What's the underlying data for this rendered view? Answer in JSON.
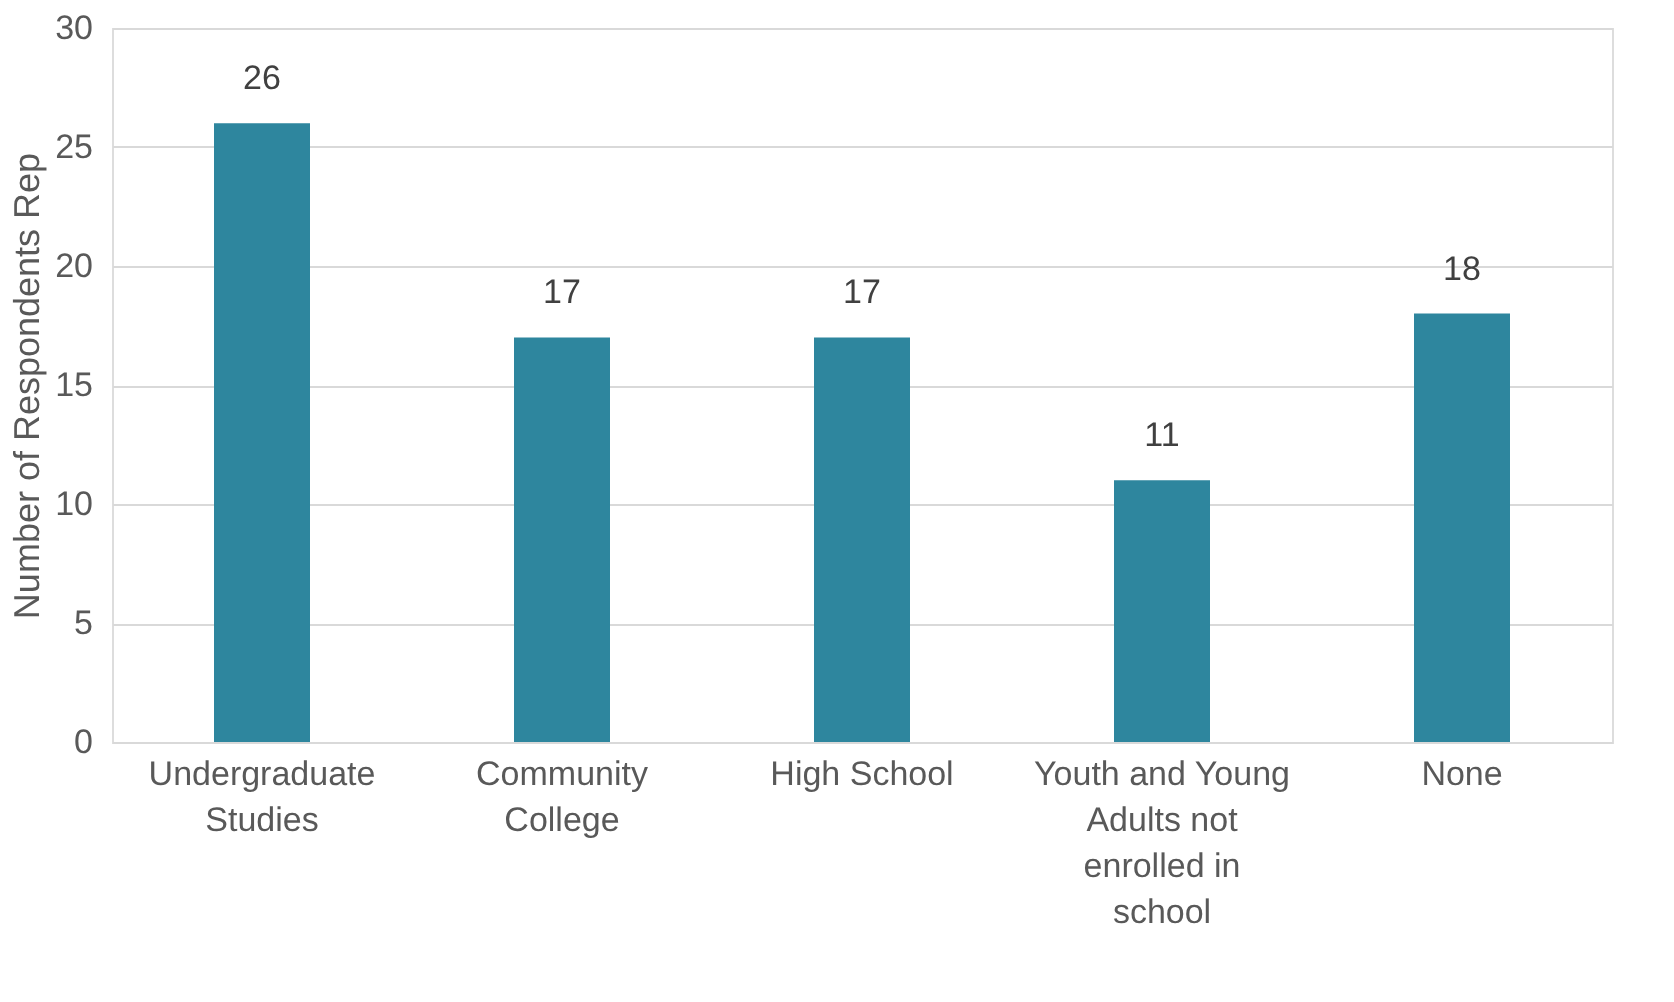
{
  "chart_data": {
    "type": "bar",
    "ylabel": "Number of Respondents Rep",
    "categories": [
      "Undergraduate Studies",
      "Community College",
      "High School",
      "Youth and Young Adults not enrolled in school",
      "None"
    ],
    "values": [
      26,
      17,
      17,
      11,
      18
    ],
    "color": "#2e869e",
    "ylim": [
      0,
      30
    ],
    "yticks": [
      0,
      5,
      10,
      15,
      20,
      25,
      30
    ],
    "grid": "y",
    "data_labels": true
  }
}
